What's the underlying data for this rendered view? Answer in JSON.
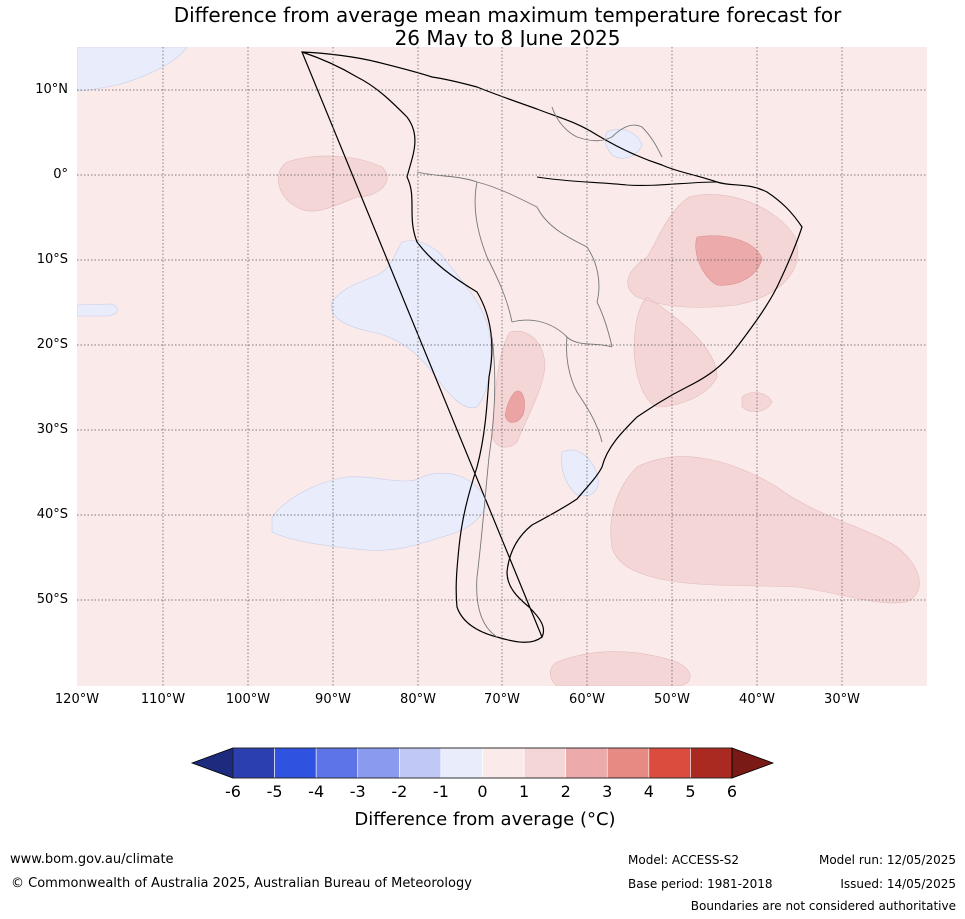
{
  "title": {
    "line1": "Difference from average mean maximum temperature forecast for",
    "line2": "26 May to 8 June 2025"
  },
  "map": {
    "lat_labels": [
      "10°N",
      "0°",
      "10°S",
      "20°S",
      "30°S",
      "40°S",
      "50°S"
    ],
    "lon_labels": [
      "120°W",
      "110°W",
      "100°W",
      "90°W",
      "80°W",
      "70°W",
      "60°W",
      "50°W",
      "40°W",
      "30°W"
    ],
    "background_color": "#fbeaea",
    "anomaly_areas": [
      {
        "name": "central-brazil-warm-0-1-to-1-2",
        "level": "1 to 2",
        "color": "#f5d6d6"
      },
      {
        "name": "northeast-brazil-warm-2-3",
        "level": "2 to 3",
        "color": "#ecaaaa"
      },
      {
        "name": "andes-warm-2-3",
        "level": "2 to 3",
        "color": "#eba3a3"
      },
      {
        "name": "south-atlantic-warm-1-2",
        "level": "1 to 2",
        "color": "#f5d6d6"
      },
      {
        "name": "east-pacific-warm-1-2",
        "level": "1 to 2",
        "color": "#f5d6d6"
      },
      {
        "name": "pacific-cool-0-to-minus-1",
        "level": "-1 to 0",
        "color": "#e8ecfb"
      },
      {
        "name": "south-pacific-cool-0-to-minus-1",
        "level": "-1 to 0",
        "color": "#e8ecfb"
      },
      {
        "name": "argentina-cool-0-to-minus-1",
        "level": "-1 to 0",
        "color": "#e8ecfb"
      },
      {
        "name": "guiana-cool-0-to-minus-1",
        "level": "-1 to 0",
        "color": "#e8ecfb"
      }
    ]
  },
  "colorbar": {
    "ticks": [
      "-6",
      "-5",
      "-4",
      "-3",
      "-2",
      "-1",
      "0",
      "1",
      "2",
      "3",
      "4",
      "5",
      "6"
    ],
    "colors": [
      "#2b3fb1",
      "#2f52e0",
      "#5c74e8",
      "#8a9bef",
      "#c0c8f5",
      "#e8ecfb",
      "#fbeaea",
      "#f5d6d6",
      "#ecaaaa",
      "#e88a84",
      "#db4c3f",
      "#aa2a22"
    ],
    "low_extend_color": "#1d2b7e",
    "high_extend_color": "#7a1a16",
    "label": "Difference from average (°C)"
  },
  "footer": {
    "url": "www.bom.gov.au/climate",
    "copyright": "© Commonwealth of Australia 2025, Australian Bureau of Meteorology",
    "model": "Model: ACCESS-S2",
    "base_period": "Base period: 1981-2018",
    "model_run": "Model run: 12/05/2025",
    "issued": "Issued: 14/05/2025",
    "disclaimer": "Boundaries are not considered authoritative"
  }
}
